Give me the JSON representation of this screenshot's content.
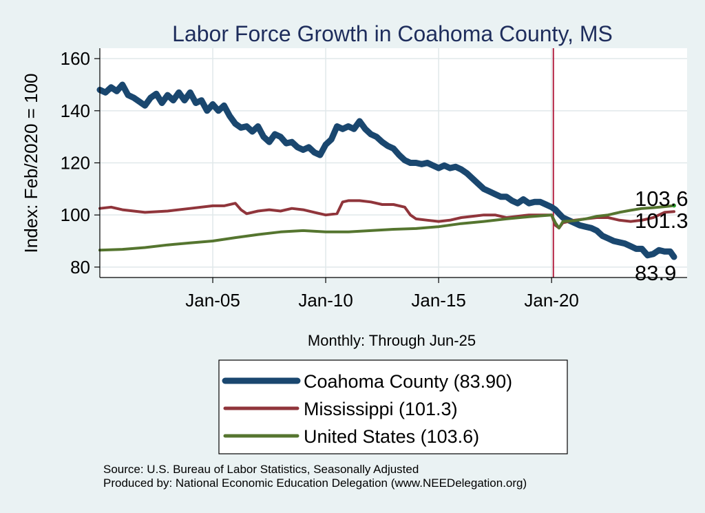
{
  "chart_data": {
    "type": "line",
    "title": "Labor Force Growth in Coahoma  County, MS",
    "ylabel": "Index: Feb/2020 = 100",
    "xlabel": "Monthly: Through Jun-25",
    "xlim": [
      2000.0,
      2026.0
    ],
    "ylim": [
      76,
      164
    ],
    "yticks": [
      80,
      100,
      120,
      140,
      160
    ],
    "xticks": [
      {
        "value": 2005.0,
        "label": "Jan-05"
      },
      {
        "value": 2010.0,
        "label": "Jan-10"
      },
      {
        "value": 2015.0,
        "label": "Jan-15"
      },
      {
        "value": 2020.0,
        "label": "Jan-20"
      }
    ],
    "reference_line": {
      "x": 2020.08,
      "label": ""
    },
    "series": [
      {
        "name": "Coahoma  County",
        "legend": "Coahoma  County (83.90)",
        "color": "#1a476f",
        "width": 9,
        "end_label": "83.9",
        "points": [
          [
            2000.0,
            148
          ],
          [
            2000.25,
            147
          ],
          [
            2000.5,
            149
          ],
          [
            2000.75,
            147.5
          ],
          [
            2001.0,
            150
          ],
          [
            2001.25,
            146
          ],
          [
            2001.5,
            145
          ],
          [
            2001.75,
            143.5
          ],
          [
            2002.0,
            142
          ],
          [
            2002.25,
            145
          ],
          [
            2002.5,
            146.5
          ],
          [
            2002.75,
            143
          ],
          [
            2003.0,
            146
          ],
          [
            2003.25,
            144
          ],
          [
            2003.5,
            147
          ],
          [
            2003.75,
            144
          ],
          [
            2004.0,
            147
          ],
          [
            2004.25,
            143
          ],
          [
            2004.5,
            144
          ],
          [
            2004.75,
            140
          ],
          [
            2005.0,
            142.5
          ],
          [
            2005.25,
            140
          ],
          [
            2005.5,
            142
          ],
          [
            2005.75,
            138
          ],
          [
            2006.0,
            135
          ],
          [
            2006.25,
            133.5
          ],
          [
            2006.5,
            134
          ],
          [
            2006.75,
            132
          ],
          [
            2007.0,
            134
          ],
          [
            2007.25,
            130
          ],
          [
            2007.5,
            128
          ],
          [
            2007.75,
            131
          ],
          [
            2008.0,
            130
          ],
          [
            2008.25,
            127.5
          ],
          [
            2008.5,
            128
          ],
          [
            2008.75,
            126
          ],
          [
            2009.0,
            125
          ],
          [
            2009.25,
            126
          ],
          [
            2009.5,
            124
          ],
          [
            2009.75,
            123
          ],
          [
            2010.0,
            127
          ],
          [
            2010.25,
            129
          ],
          [
            2010.5,
            134
          ],
          [
            2010.75,
            133
          ],
          [
            2011.0,
            134
          ],
          [
            2011.25,
            133
          ],
          [
            2011.5,
            136
          ],
          [
            2011.75,
            133
          ],
          [
            2012.0,
            131
          ],
          [
            2012.25,
            130
          ],
          [
            2012.5,
            128
          ],
          [
            2012.75,
            126.5
          ],
          [
            2013.0,
            125.5
          ],
          [
            2013.25,
            123
          ],
          [
            2013.5,
            121
          ],
          [
            2013.75,
            120
          ],
          [
            2014.0,
            120
          ],
          [
            2014.25,
            119.5
          ],
          [
            2014.5,
            120
          ],
          [
            2014.75,
            119
          ],
          [
            2015.0,
            118
          ],
          [
            2015.25,
            119
          ],
          [
            2015.5,
            118
          ],
          [
            2015.75,
            118.5
          ],
          [
            2016.0,
            117.5
          ],
          [
            2016.25,
            116
          ],
          [
            2016.5,
            114
          ],
          [
            2016.75,
            112
          ],
          [
            2017.0,
            110
          ],
          [
            2017.25,
            109
          ],
          [
            2017.5,
            108
          ],
          [
            2017.75,
            107
          ],
          [
            2018.0,
            107
          ],
          [
            2018.25,
            105.5
          ],
          [
            2018.5,
            104.5
          ],
          [
            2018.75,
            106
          ],
          [
            2019.0,
            104.5
          ],
          [
            2019.25,
            105
          ],
          [
            2019.5,
            105
          ],
          [
            2019.75,
            104
          ],
          [
            2020.0,
            103
          ],
          [
            2020.17,
            102
          ],
          [
            2020.33,
            100.5
          ],
          [
            2020.5,
            99
          ],
          [
            2020.75,
            98
          ],
          [
            2021.0,
            97
          ],
          [
            2021.25,
            96
          ],
          [
            2021.5,
            95.5
          ],
          [
            2021.75,
            95
          ],
          [
            2022.0,
            94
          ],
          [
            2022.25,
            92
          ],
          [
            2022.5,
            91
          ],
          [
            2022.75,
            90
          ],
          [
            2023.0,
            89.5
          ],
          [
            2023.25,
            89
          ],
          [
            2023.5,
            88
          ],
          [
            2023.75,
            87
          ],
          [
            2024.0,
            87
          ],
          [
            2024.25,
            84.5
          ],
          [
            2024.5,
            85
          ],
          [
            2024.75,
            86.5
          ],
          [
            2025.0,
            86
          ],
          [
            2025.25,
            86
          ],
          [
            2025.42,
            83.9
          ]
        ]
      },
      {
        "name": "Mississippi",
        "legend": "Mississippi (101.3)",
        "color": "#90353b",
        "width": 4,
        "end_label": "101.3",
        "points": [
          [
            2000.0,
            102.5
          ],
          [
            2000.5,
            103
          ],
          [
            2001.0,
            102
          ],
          [
            2001.5,
            101.5
          ],
          [
            2002.0,
            101
          ],
          [
            2003.0,
            101.5
          ],
          [
            2004.0,
            102.5
          ],
          [
            2005.0,
            103.5
          ],
          [
            2005.5,
            103.5
          ],
          [
            2006.0,
            104.5
          ],
          [
            2006.25,
            102
          ],
          [
            2006.5,
            100.5
          ],
          [
            2007.0,
            101.5
          ],
          [
            2007.5,
            102
          ],
          [
            2008.0,
            101.5
          ],
          [
            2008.5,
            102.5
          ],
          [
            2009.0,
            102
          ],
          [
            2009.5,
            101
          ],
          [
            2010.0,
            100
          ],
          [
            2010.5,
            100.5
          ],
          [
            2010.75,
            105
          ],
          [
            2011.0,
            105.5
          ],
          [
            2011.5,
            105.5
          ],
          [
            2012.0,
            105
          ],
          [
            2012.5,
            104
          ],
          [
            2013.0,
            104
          ],
          [
            2013.5,
            103
          ],
          [
            2013.75,
            100
          ],
          [
            2014.0,
            98.5
          ],
          [
            2014.5,
            98
          ],
          [
            2015.0,
            97.5
          ],
          [
            2015.5,
            98
          ],
          [
            2016.0,
            99
          ],
          [
            2016.5,
            99.5
          ],
          [
            2017.0,
            100
          ],
          [
            2017.5,
            100
          ],
          [
            2018.0,
            99
          ],
          [
            2018.5,
            99.5
          ],
          [
            2019.0,
            100
          ],
          [
            2019.5,
            100
          ],
          [
            2020.0,
            100
          ],
          [
            2020.17,
            96
          ],
          [
            2020.33,
            95
          ],
          [
            2020.5,
            97
          ],
          [
            2021.0,
            98
          ],
          [
            2021.5,
            98.5
          ],
          [
            2022.0,
            99
          ],
          [
            2022.5,
            99
          ],
          [
            2023.0,
            98
          ],
          [
            2023.5,
            97.5
          ],
          [
            2024.0,
            98
          ],
          [
            2024.5,
            99
          ],
          [
            2025.0,
            101
          ],
          [
            2025.42,
            101.3
          ]
        ]
      },
      {
        "name": "United States",
        "legend": "United States (103.6)",
        "color": "#55752f",
        "width": 4,
        "end_label": "103.6",
        "points": [
          [
            2000.0,
            86.5
          ],
          [
            2001.0,
            86.8
          ],
          [
            2002.0,
            87.5
          ],
          [
            2003.0,
            88.5
          ],
          [
            2004.0,
            89.3
          ],
          [
            2005.0,
            90
          ],
          [
            2006.0,
            91.3
          ],
          [
            2007.0,
            92.5
          ],
          [
            2008.0,
            93.5
          ],
          [
            2009.0,
            94
          ],
          [
            2010.0,
            93.5
          ],
          [
            2011.0,
            93.5
          ],
          [
            2012.0,
            94
          ],
          [
            2013.0,
            94.5
          ],
          [
            2014.0,
            94.8
          ],
          [
            2015.0,
            95.5
          ],
          [
            2016.0,
            96.7
          ],
          [
            2017.0,
            97.5
          ],
          [
            2018.0,
            98.5
          ],
          [
            2019.0,
            99.3
          ],
          [
            2020.0,
            100
          ],
          [
            2020.17,
            97
          ],
          [
            2020.33,
            95
          ],
          [
            2020.5,
            97.5
          ],
          [
            2021.0,
            97.8
          ],
          [
            2021.5,
            98.5
          ],
          [
            2022.0,
            99.5
          ],
          [
            2022.5,
            100
          ],
          [
            2023.0,
            101
          ],
          [
            2023.5,
            101.8
          ],
          [
            2024.0,
            102.5
          ],
          [
            2024.5,
            102.8
          ],
          [
            2025.0,
            103.2
          ],
          [
            2025.42,
            103.6
          ]
        ]
      }
    ]
  },
  "footer": {
    "source": "Source: U.S. Bureau of Labor Statistics, Seasonally Adjusted",
    "produced": "Produced by: National Economic Education Delegation (www.NEEDelegation.org)"
  },
  "colors": {
    "background": "#eaf2f3",
    "plot_background": "#ffffff",
    "grid": "#e0e8ea",
    "reference_line": "#b22242",
    "title": "#1e2d5c"
  }
}
